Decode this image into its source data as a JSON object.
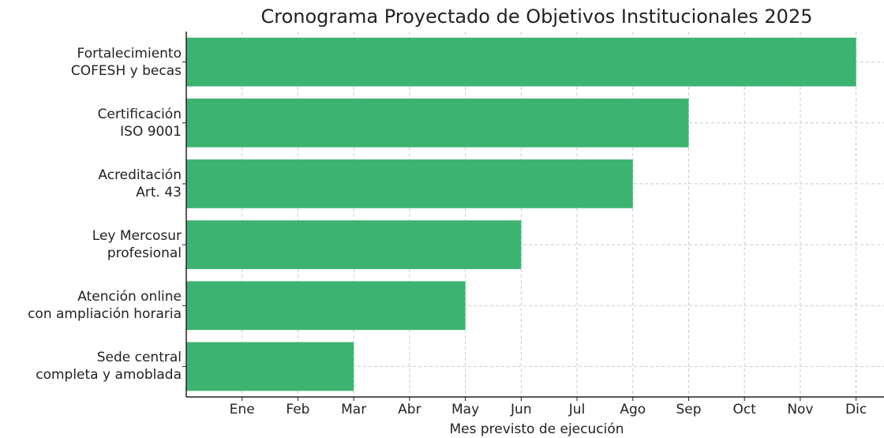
{
  "chart_data": {
    "type": "bar",
    "orientation": "horizontal",
    "title": "Cronograma Proyectado de Objetivos Institucionales 2025",
    "x_label": "Mes previsto de ejecución",
    "categories": [
      "Fortalecimiento\nCOFESH y becas",
      "Certificación\nISO 9001",
      "Acreditación\nArt. 43",
      "Ley Mercosur\nprofesional",
      "Atención online\ncon ampliación horaria",
      "Sede central\ncompleta y amoblada"
    ],
    "values": [
      12,
      9,
      8,
      6,
      5,
      3
    ],
    "color": "#3cb371",
    "xlim": [
      0,
      12.5
    ],
    "xticks": [
      {
        "value": 1,
        "label": "Ene"
      },
      {
        "value": 2,
        "label": "Feb"
      },
      {
        "value": 3,
        "label": "Mar"
      },
      {
        "value": 4,
        "label": "Abr"
      },
      {
        "value": 5,
        "label": "May"
      },
      {
        "value": 6,
        "label": "Jun"
      },
      {
        "value": 7,
        "label": "Jul"
      },
      {
        "value": 8,
        "label": "Ago"
      },
      {
        "value": 9,
        "label": "Sep"
      },
      {
        "value": 10,
        "label": "Oct"
      },
      {
        "value": 11,
        "label": "Nov"
      },
      {
        "value": 12,
        "label": "Dic"
      }
    ],
    "grid": true
  }
}
